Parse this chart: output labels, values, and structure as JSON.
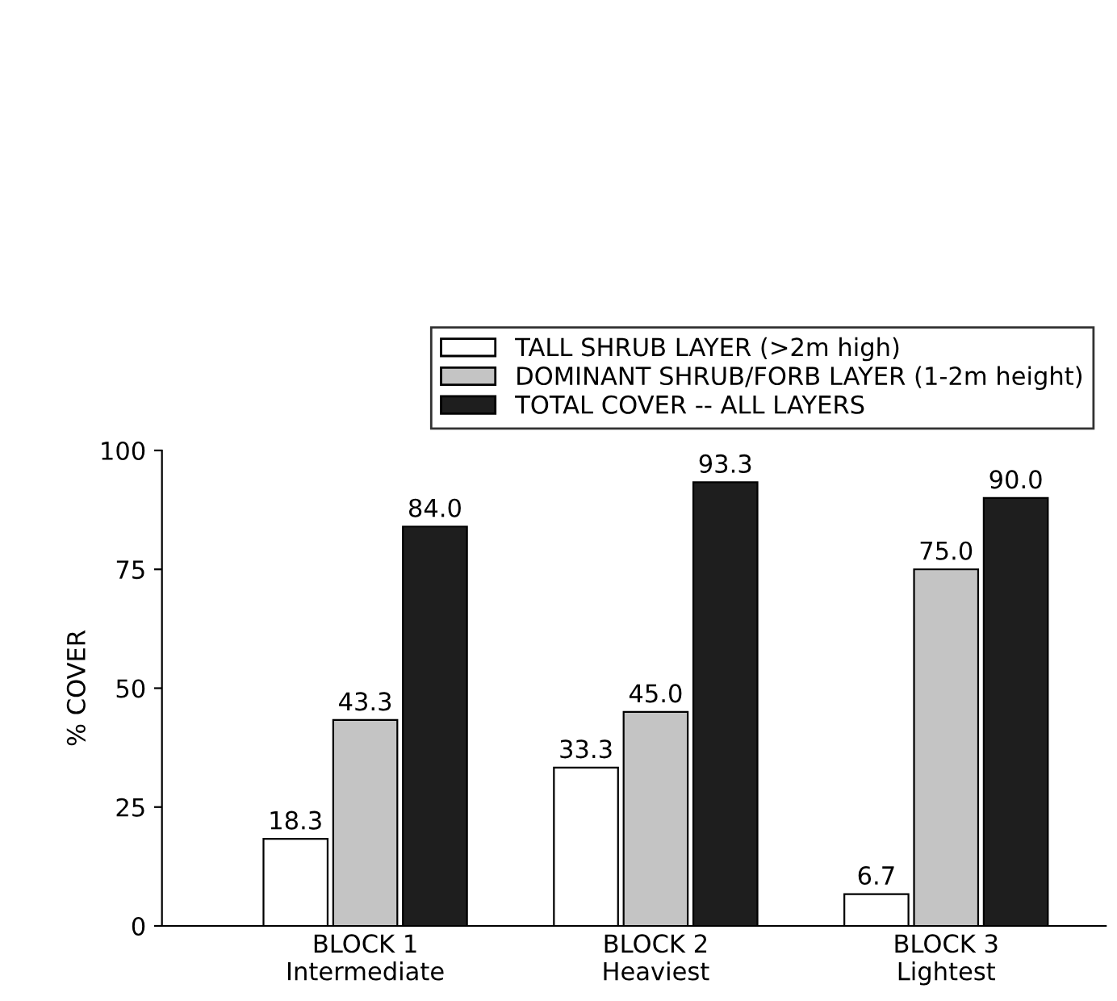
{
  "chart_data": {
    "type": "bar",
    "ylabel": "% COVER",
    "categories": [
      "BLOCK 1\nIntermediate",
      "BLOCK 2\nHeaviest",
      "BLOCK 3\nLightest"
    ],
    "series": [
      {
        "name": "TALL SHRUB LAYER (>2m high)",
        "color": "#ffffff",
        "values": [
          18.3,
          33.3,
          6.7
        ],
        "value_labels": [
          "18.3",
          "33.3",
          "6.7"
        ]
      },
      {
        "name": "DOMINANT SHRUB/FORB LAYER (1-2m height)",
        "color": "#c4c4c4",
        "values": [
          43.3,
          45.0,
          75.0
        ],
        "value_labels": [
          "43.3",
          "45.0",
          "75.0"
        ]
      },
      {
        "name": "TOTAL COVER -- ALL LAYERS",
        "color": "#1e1e1e",
        "values": [
          84.0,
          93.3,
          90.0
        ],
        "value_labels": [
          "84.0",
          "93.3",
          "90.0"
        ]
      }
    ],
    "ylim": [
      0,
      100
    ],
    "yticks": [
      0,
      25,
      50,
      75,
      100
    ],
    "legend": "top right",
    "grid": false
  }
}
